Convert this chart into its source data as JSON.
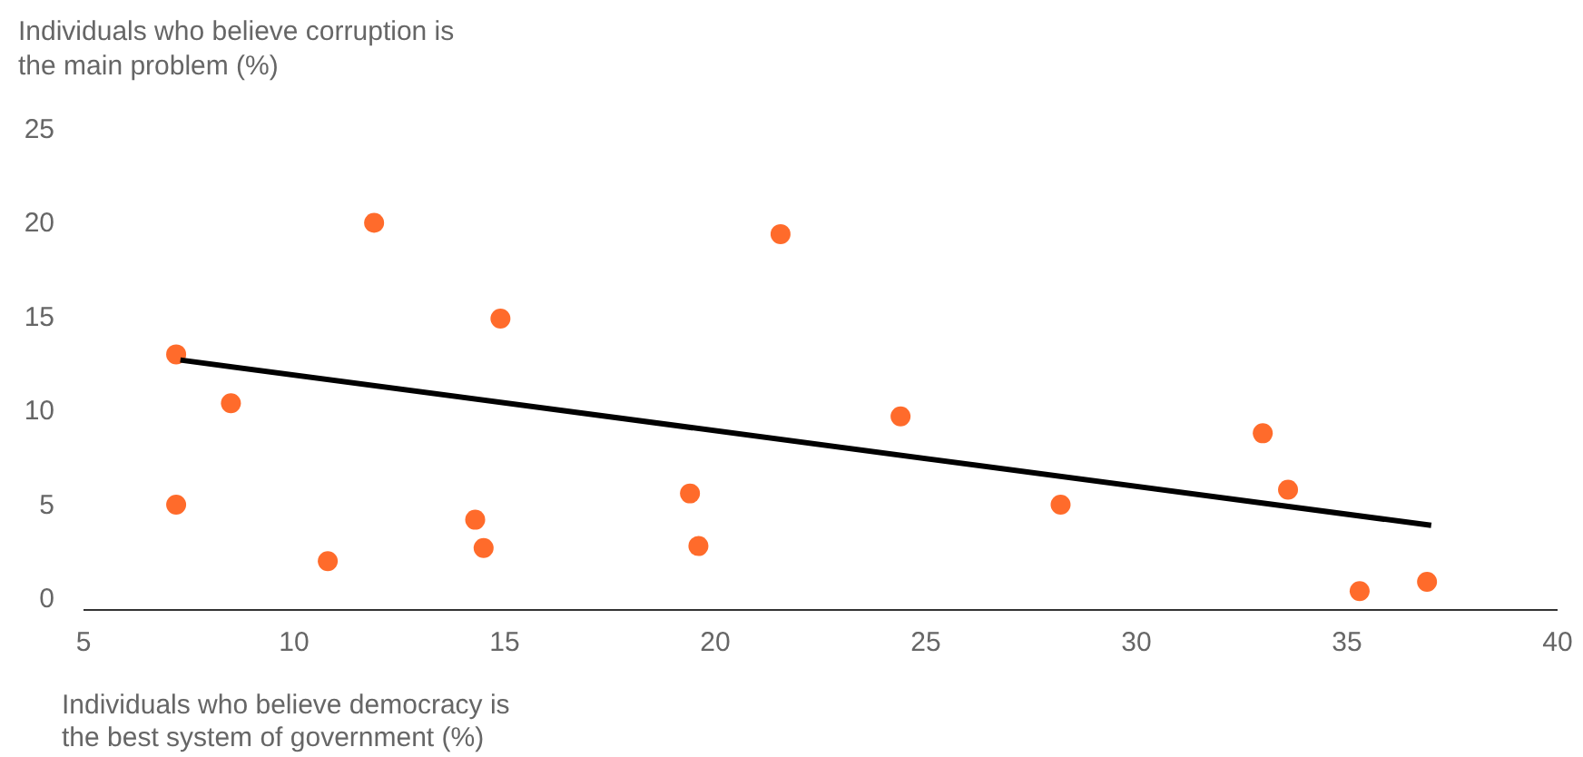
{
  "chart_data": {
    "type": "scatter",
    "ylabel": "Individuals who believe corruption is the main problem (%)",
    "xlabel": "Individuals who believe democracy is the best system of government (%)",
    "xlim": [
      5,
      40
    ],
    "xticks": [
      5,
      10,
      15,
      20,
      25,
      30,
      35,
      40
    ],
    "ylim": [
      -0.5,
      25
    ],
    "yticks": [
      0,
      5,
      10,
      15,
      20,
      25
    ],
    "grid": false,
    "marker": "circle",
    "series": [
      {
        "color": "#ff6b2b",
        "x": [
          7.2,
          7.2,
          8.5,
          10.8,
          11.9,
          14.3,
          14.5,
          14.9,
          19.4,
          19.6,
          21.55,
          24.4,
          28.2,
          33.0,
          33.6,
          35.3,
          36.9
        ],
        "values": [
          13.1,
          5.1,
          10.5,
          2.1,
          20.1,
          4.3,
          2.8,
          15.0,
          5.7,
          2.9,
          19.5,
          9.8,
          5.1,
          8.9,
          5.9,
          0.5,
          1.0
        ]
      },
      {
        "type": "line",
        "color": "#000000",
        "marker": "none",
        "line_style": "solid",
        "x": [
          7.3,
          37.0
        ],
        "values": [
          12.8,
          4.0
        ]
      }
    ]
  }
}
